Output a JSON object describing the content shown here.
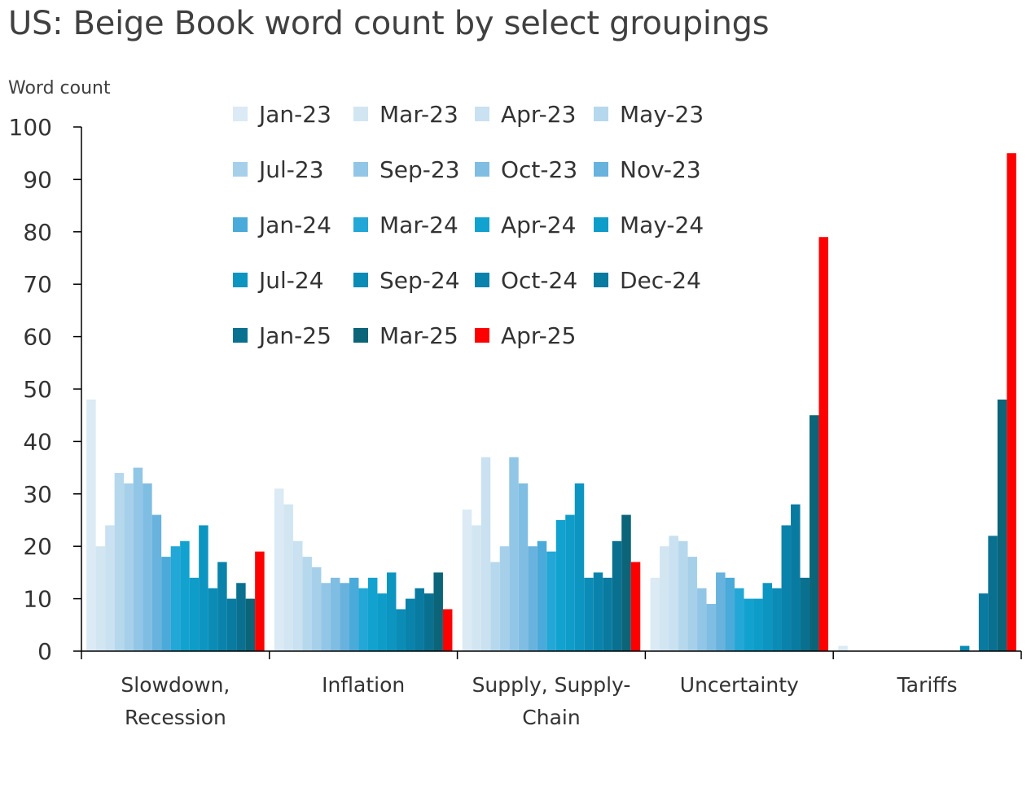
{
  "chart_data": {
    "type": "bar",
    "title": "US: Beige Book word count by select groupings",
    "ylabel": "Word count",
    "xlabel": "",
    "ylim": [
      0,
      100
    ],
    "yticks": [
      0,
      10,
      20,
      30,
      40,
      50,
      60,
      70,
      80,
      90,
      100
    ],
    "grid": false,
    "legend_position": "top-center",
    "categories": [
      "Slowdown, Recession",
      "Inflation",
      "Supply, Supply-Chain",
      "Uncertainty",
      "Tariffs"
    ],
    "category_lines": [
      [
        "Slowdown,",
        "Recession"
      ],
      [
        "Inflation"
      ],
      [
        "Supply, Supply-",
        "Chain"
      ],
      [
        "Uncertainty"
      ],
      [
        "Tariffs"
      ]
    ],
    "series": [
      {
        "name": "Jan-23",
        "color": "#dbeaf4",
        "values": [
          48,
          31,
          27,
          14,
          1
        ]
      },
      {
        "name": "Mar-23",
        "color": "#d2e6f2",
        "values": [
          20,
          28,
          24,
          20,
          0
        ]
      },
      {
        "name": "Apr-23",
        "color": "#c9e1f0",
        "values": [
          24,
          21,
          37,
          22,
          0
        ]
      },
      {
        "name": "May-23",
        "color": "#b6d8ed",
        "values": [
          34,
          18,
          17,
          21,
          0
        ]
      },
      {
        "name": "Jul-23",
        "color": "#a6d0ea",
        "values": [
          32,
          16,
          20,
          18,
          0
        ]
      },
      {
        "name": "Sep-23",
        "color": "#92c6e6",
        "values": [
          35,
          13,
          37,
          12,
          0
        ]
      },
      {
        "name": "Oct-23",
        "color": "#80bde2",
        "values": [
          32,
          14,
          32,
          9,
          0
        ]
      },
      {
        "name": "Nov-23",
        "color": "#68b2de",
        "values": [
          26,
          13,
          20,
          15,
          0
        ]
      },
      {
        "name": "Jan-24",
        "color": "#4aaad9",
        "values": [
          18,
          14,
          21,
          14,
          0
        ]
      },
      {
        "name": "Mar-24",
        "color": "#22a7d6",
        "values": [
          20,
          12,
          19,
          12,
          0
        ]
      },
      {
        "name": "Apr-24",
        "color": "#12a2d0",
        "values": [
          21,
          14,
          25,
          10,
          0
        ]
      },
      {
        "name": "May-24",
        "color": "#0e9cc8",
        "values": [
          14,
          11,
          26,
          10,
          0
        ]
      },
      {
        "name": "Jul-24",
        "color": "#0c95c0",
        "values": [
          24,
          15,
          32,
          13,
          0
        ]
      },
      {
        "name": "Sep-24",
        "color": "#0a8cb6",
        "values": [
          12,
          8,
          14,
          12,
          1
        ]
      },
      {
        "name": "Oct-24",
        "color": "#0983ab",
        "values": [
          17,
          10,
          15,
          24,
          0
        ]
      },
      {
        "name": "Dec-24",
        "color": "#097aa0",
        "values": [
          10,
          12,
          14,
          28,
          11
        ]
      },
      {
        "name": "Jan-25",
        "color": "#0a7090",
        "values": [
          13,
          11,
          21,
          14,
          22
        ]
      },
      {
        "name": "Mar-25",
        "color": "#0b6478",
        "values": [
          10,
          15,
          26,
          45,
          48
        ]
      },
      {
        "name": "Apr-25",
        "color": "#ff0000",
        "values": [
          19,
          8,
          17,
          79,
          95
        ]
      }
    ]
  }
}
